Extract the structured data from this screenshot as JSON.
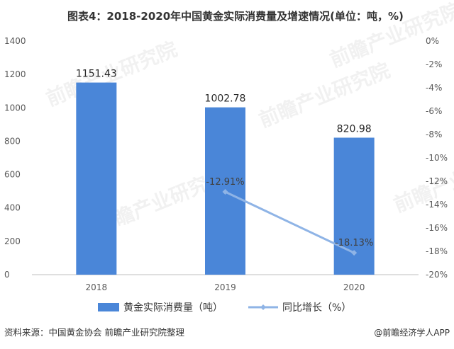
{
  "title": "图表4：2018-2020年中国黄金实际消费量及增速情况(单位：吨，%)",
  "source": "资料来源：中国黄金协会 前瞻产业研究院整理",
  "credit": "@前瞻经济学人APP",
  "watermark": "前瞻产业研究院",
  "colors": {
    "bar": "#4a86d8",
    "line": "#8fb4e6",
    "grid": "#d9d9d9"
  },
  "chart_data": {
    "type": "bar",
    "categories": [
      "2018",
      "2019",
      "2020"
    ],
    "series": [
      {
        "name": "黄金实际消费量（吨）",
        "type": "bar",
        "axis": "left",
        "values": [
          1151.43,
          1002.78,
          820.98
        ],
        "labels": [
          "1151.43",
          "1002.78",
          "820.98"
        ]
      },
      {
        "name": "同比增长（%）",
        "type": "line",
        "axis": "right",
        "values": [
          null,
          -12.91,
          -18.13
        ],
        "labels": [
          "",
          "-12.91%",
          "-18.13%"
        ]
      }
    ],
    "y_left": {
      "min": 0,
      "max": 1400,
      "ticks": [
        "0",
        "200",
        "400",
        "600",
        "800",
        "1000",
        "1200",
        "1400"
      ]
    },
    "y_right": {
      "min": -20,
      "max": 0,
      "ticks": [
        "0%",
        "-2%",
        "-4%",
        "-6%",
        "-8%",
        "-10%",
        "-12%",
        "-14%",
        "-16%",
        "-18%",
        "-20%"
      ]
    },
    "grid": false,
    "legend_position": "bottom"
  }
}
